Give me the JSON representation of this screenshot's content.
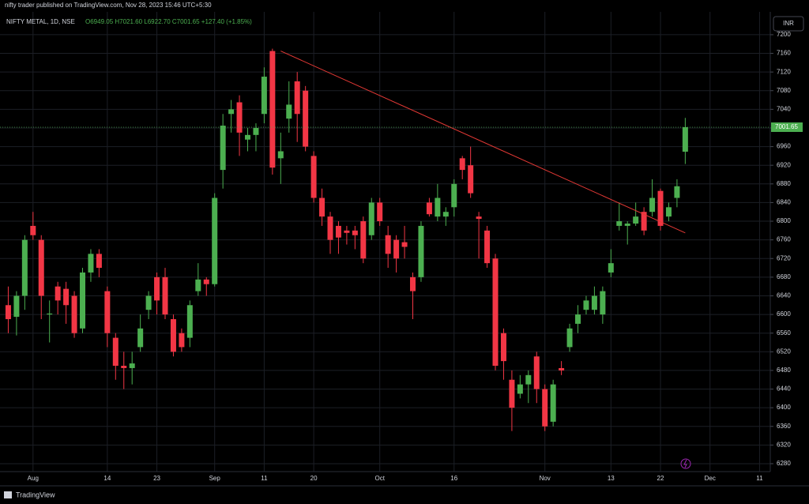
{
  "chart_data": {
    "type": "candlestick",
    "header": "nifty trader published on TradingView.com, Nov 28, 2023 15:46 UTC+5:30",
    "title": "NIFTY METAL, 1D, NSE",
    "legend_text": "O6949.05 H7021.60 L6922.70 C7001.65 +127.40 (+1.85%)",
    "currency": "INR",
    "footer": "TradingView",
    "up_color": "#4caf50",
    "down_color": "#f23645",
    "grid": true,
    "open": [
      6620,
      6595,
      6640,
      6790,
      6760,
      6600,
      6660,
      6655,
      6640,
      6570,
      6690,
      6730,
      6650,
      6550,
      6490,
      6485,
      6530,
      6610,
      6680,
      6680,
      6590,
      6560,
      6550,
      6650,
      6675,
      6665,
      6910,
      7030,
      7055,
      6975,
      6985,
      7030,
      7165,
      6935,
      7020,
      7100,
      7080,
      6940,
      6850,
      6810,
      6790,
      6780,
      6780,
      6800,
      6770,
      6840,
      6770,
      6760,
      6755,
      6680,
      6680,
      6840,
      6810,
      6810,
      6830,
      6935,
      6920,
      6810,
      6780,
      6720,
      6560,
      6460,
      6430,
      6450,
      6510,
      6440,
      6370,
      6485,
      6530,
      6580,
      6610,
      6610,
      6600,
      6690,
      6790,
      6790,
      6795,
      6820,
      6820,
      6865,
      6810,
      6850,
      6949.05
    ],
    "high": [
      6660,
      6650,
      6770,
      6820,
      6770,
      6630,
      6670,
      6670,
      6650,
      6700,
      6740,
      6740,
      6660,
      6560,
      6520,
      6520,
      6600,
      6650,
      6690,
      6700,
      6600,
      6570,
      6630,
      6710,
      6680,
      6860,
      7030,
      7060,
      7070,
      7000,
      7010,
      7130,
      7170,
      6990,
      7100,
      7120,
      7090,
      6950,
      6870,
      6820,
      6800,
      6790,
      6790,
      6810,
      6850,
      6850,
      6790,
      6770,
      6790,
      6690,
      6800,
      6850,
      6880,
      6830,
      6890,
      6940,
      6960,
      6820,
      6790,
      6730,
      6570,
      6480,
      6470,
      6480,
      6520,
      6450,
      6460,
      6500,
      6580,
      6620,
      6640,
      6660,
      6660,
      6740,
      6840,
      6800,
      6840,
      6830,
      6890,
      6870,
      6840,
      6890,
      7021.6
    ],
    "low": [
      6560,
      6555,
      6610,
      6760,
      6590,
      6540,
      6600,
      6580,
      6550,
      6560,
      6670,
      6680,
      6530,
      6460,
      6440,
      6450,
      6520,
      6590,
      6600,
      6590,
      6510,
      6520,
      6530,
      6640,
      6640,
      6660,
      6870,
      6990,
      6940,
      6950,
      6950,
      7010,
      6900,
      6880,
      6990,
      6970,
      6950,
      6840,
      6790,
      6730,
      6730,
      6750,
      6740,
      6710,
      6760,
      6790,
      6700,
      6690,
      6720,
      6590,
      6670,
      6810,
      6800,
      6790,
      6810,
      6890,
      6850,
      6720,
      6700,
      6480,
      6460,
      6350,
      6420,
      6410,
      6410,
      6350,
      6360,
      6470,
      6520,
      6560,
      6600,
      6600,
      6580,
      6680,
      6780,
      6750,
      6790,
      6770,
      6810,
      6780,
      6800,
      6830,
      6922.7
    ],
    "close": [
      6590,
      6640,
      6760,
      6770,
      6640,
      6602,
      6630,
      6620,
      6560,
      6690,
      6730,
      6700,
      6560,
      6490,
      6485,
      6495,
      6570,
      6640,
      6630,
      6600,
      6520,
      6530,
      6620,
      6675,
      6665,
      6850,
      7005,
      7040,
      6990,
      6985,
      7000,
      7110,
      6915,
      6950,
      7050,
      7030,
      6960,
      6850,
      6810,
      6760,
      6765,
      6775,
      6770,
      6720,
      6840,
      6800,
      6730,
      6720,
      6745,
      6650,
      6790,
      6815,
      6850,
      6820,
      6880,
      6910,
      6860,
      6805,
      6710,
      6490,
      6500,
      6400,
      6450,
      6470,
      6440,
      6360,
      6450,
      6480,
      6570,
      6600,
      6630,
      6640,
      6650,
      6710,
      6800,
      6795,
      6810,
      6780,
      6850,
      6790,
      6830,
      6875,
      7001.65
    ],
    "trend_line": {
      "color": "#e53935",
      "x": [
        33,
        82
      ],
      "y": [
        7165,
        6775
      ]
    },
    "xlim": [
      -1,
      92.3
    ],
    "ylim": [
      6263,
      7249
    ],
    "yticks": [
      6280,
      6320,
      6360,
      6400,
      6440,
      6480,
      6520,
      6560,
      6600,
      6640,
      6680,
      6720,
      6760,
      6800,
      6840,
      6880,
      6920,
      6960,
      7000,
      7040,
      7080,
      7120,
      7160,
      7200
    ],
    "xticks": [
      {
        "value": 3,
        "label": "Aug"
      },
      {
        "value": 12,
        "label": "14"
      },
      {
        "value": 18,
        "label": "23"
      },
      {
        "value": 25,
        "label": "Sep"
      },
      {
        "value": 31,
        "label": "11"
      },
      {
        "value": 37,
        "label": "20"
      },
      {
        "value": 45,
        "label": "Oct"
      },
      {
        "value": 54,
        "label": "16"
      },
      {
        "value": 65,
        "label": "Nov"
      },
      {
        "value": 73,
        "label": "13"
      },
      {
        "value": 79,
        "label": "22"
      },
      {
        "value": 85,
        "label": "Dec"
      },
      {
        "value": 91,
        "label": "11"
      }
    ]
  }
}
